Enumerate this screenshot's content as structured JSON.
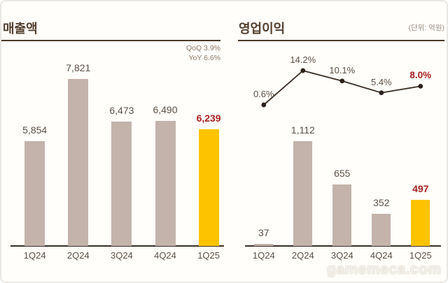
{
  "page": {
    "watermark": "gamemeca.com",
    "colors": {
      "bar": "#c3b3aa",
      "highlight_bar": "#fdc300",
      "accent_red": "#a8221f",
      "title_brown": "#54402f",
      "axis": "#3a2e24",
      "line": "#372b21",
      "label": "#5b4f44",
      "background": "#fffefb"
    }
  },
  "chart_data": [
    {
      "type": "bar",
      "title": "매출액",
      "categories": [
        "1Q24",
        "2Q24",
        "3Q24",
        "4Q24",
        "1Q25"
      ],
      "values": [
        5854,
        7821,
        6473,
        6490,
        6239
      ],
      "value_labels": [
        "5,854",
        "7,821",
        "6,473",
        "6,490",
        "6,239"
      ],
      "highlight_index": 4,
      "annotations": [
        "QoQ 3.9%",
        "YoY 6.6%"
      ],
      "legend_position": "none",
      "grid": false
    },
    {
      "type": "bar-line",
      "title": "영업이익",
      "unit_label": "(단위: 억원)",
      "categories": [
        "1Q24",
        "2Q24",
        "3Q24",
        "4Q24",
        "1Q25"
      ],
      "series": [
        {
          "name": "operating-profit-bars",
          "type": "bar",
          "values": [
            37,
            1112,
            655,
            352,
            497
          ],
          "value_labels": [
            "37",
            "1,112",
            "655",
            "352",
            "497"
          ]
        },
        {
          "name": "operating-margin-line",
          "type": "line",
          "values": [
            0.6,
            14.2,
            10.1,
            5.4,
            8.0
          ],
          "value_labels": [
            "0.6%",
            "14.2%",
            "10.1%",
            "5.4%",
            "8.0%"
          ]
        }
      ],
      "highlight_index": 4,
      "legend_position": "none",
      "grid": false
    }
  ]
}
